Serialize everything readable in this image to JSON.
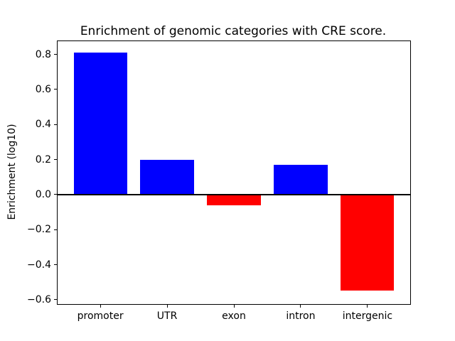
{
  "figure": {
    "background": "#ffffff"
  },
  "chart_data": {
    "type": "bar",
    "title": "Enrichment of genomic categories with CRE score.",
    "xlabel": "",
    "ylabel": "Enrichment (log10)",
    "categories": [
      "promoter",
      "UTR",
      "exon",
      "intron",
      "intergenic"
    ],
    "values": [
      0.81,
      0.2,
      -0.06,
      0.17,
      -0.55
    ],
    "bar_colors": [
      "#0000ff",
      "#0000ff",
      "#ff0000",
      "#0000ff",
      "#ff0000"
    ],
    "positive_color": "#0000ff",
    "negative_color": "#ff0000",
    "bar_width": 0.8,
    "xlim": [
      -0.64,
      4.64
    ],
    "ylim": [
      -0.625,
      0.875
    ],
    "yticks": [
      0.8,
      0.6,
      0.4,
      0.2,
      0.0,
      -0.2,
      -0.4,
      -0.6
    ],
    "ytick_labels": [
      "0.8",
      "0.6",
      "0.4",
      "0.2",
      "0.0",
      "−0.2",
      "−0.4",
      "−0.6"
    ],
    "zero_line": true,
    "grid": false,
    "legend_position": "none",
    "spine_color": "#000000",
    "text_color": "#000000"
  }
}
